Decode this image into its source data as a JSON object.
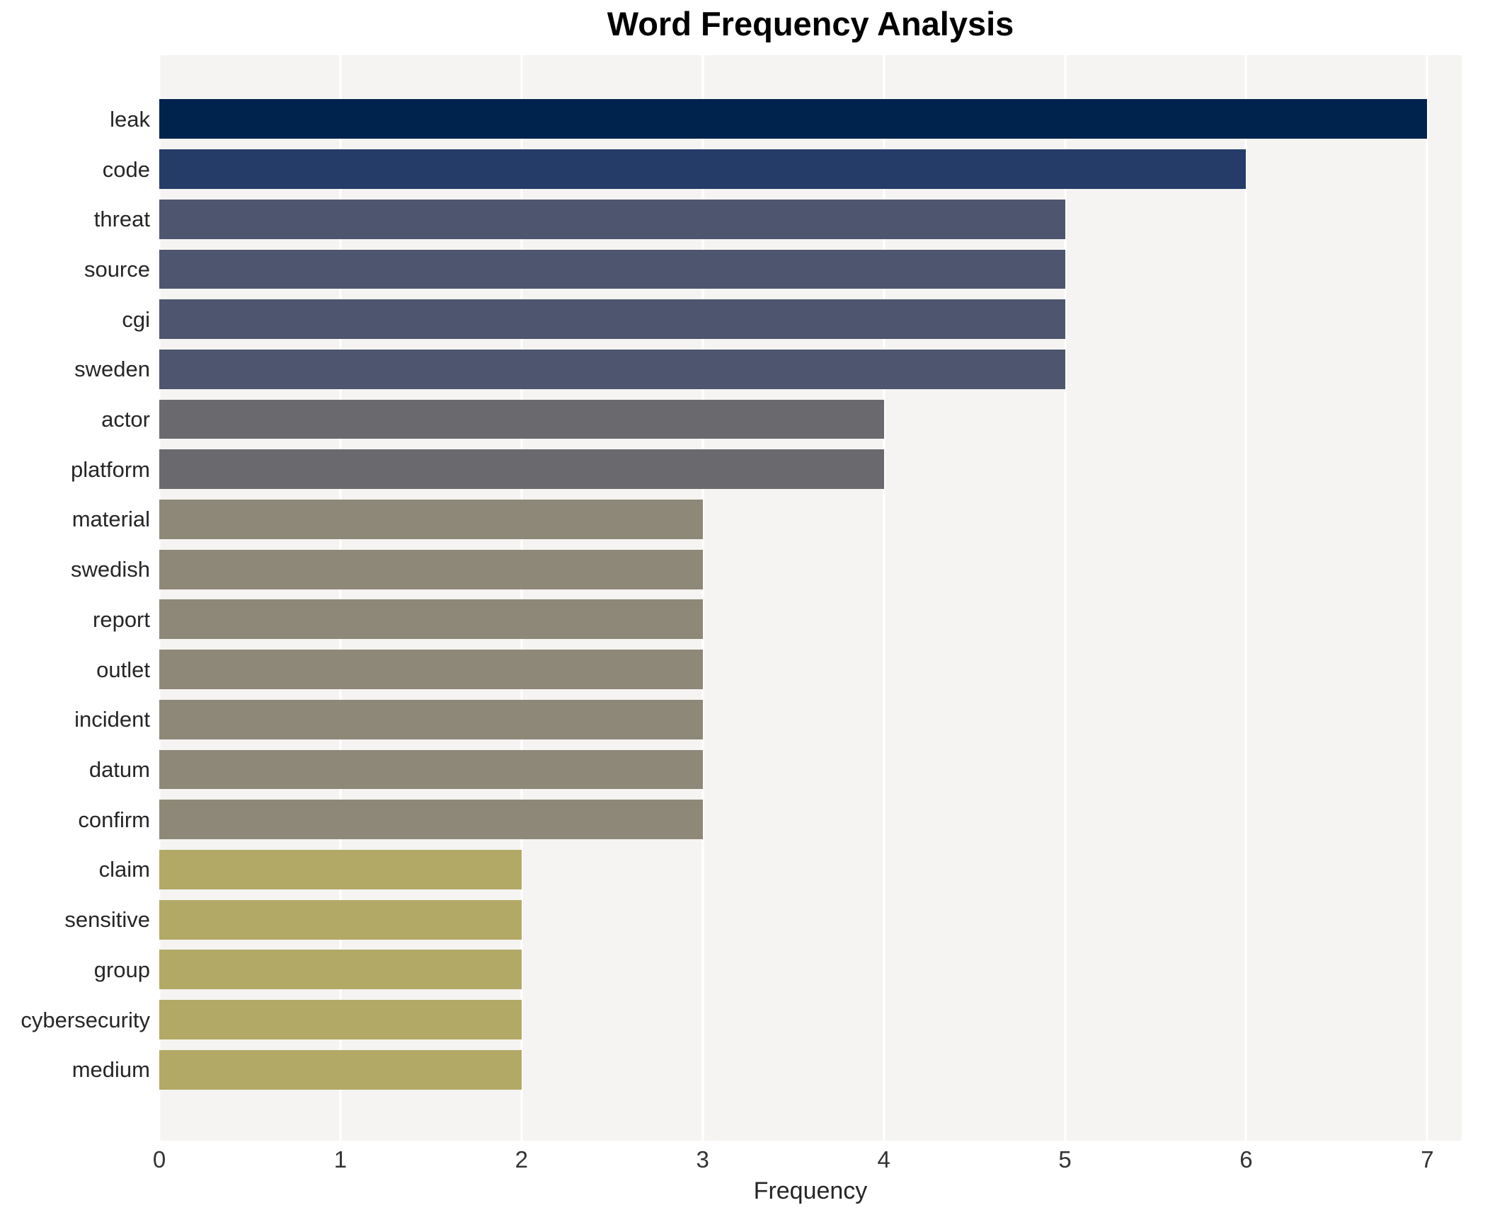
{
  "chart_data": {
    "type": "bar",
    "orientation": "horizontal",
    "title": "Word Frequency Analysis",
    "xlabel": "Frequency",
    "ylabel": "",
    "legend": "none",
    "grid": "vertical-on",
    "categories": [
      "leak",
      "code",
      "threat",
      "source",
      "cgi",
      "sweden",
      "actor",
      "platform",
      "material",
      "swedish",
      "report",
      "outlet",
      "incident",
      "datum",
      "confirm",
      "claim",
      "sensitive",
      "group",
      "cybersecurity",
      "medium"
    ],
    "values": [
      7,
      6,
      5,
      5,
      5,
      5,
      4,
      4,
      3,
      3,
      3,
      3,
      3,
      3,
      3,
      2,
      2,
      2,
      2,
      2
    ],
    "bar_colors": [
      "#00234d",
      "#253c69",
      "#4d566e",
      "#4d566e",
      "#4d566e",
      "#4d566e",
      "#6a6a6e",
      "#6a6a6e",
      "#8e8878",
      "#8e8878",
      "#8e8878",
      "#8e8878",
      "#8e8878",
      "#8e8878",
      "#8e8878",
      "#b3a967",
      "#b3a967",
      "#b3a967",
      "#b3a967",
      "#b3a967"
    ],
    "xtick_labels": [
      "0",
      "1",
      "2",
      "3",
      "4",
      "5",
      "6",
      "7"
    ],
    "xtick_values": [
      0,
      1,
      2,
      3,
      4,
      5,
      6,
      7
    ],
    "xlim": [
      0,
      7.19
    ],
    "plot_background": "#f5f4f2",
    "gridline_color": "#ffffff",
    "title_color": "#000000",
    "label_color": "#262626"
  }
}
